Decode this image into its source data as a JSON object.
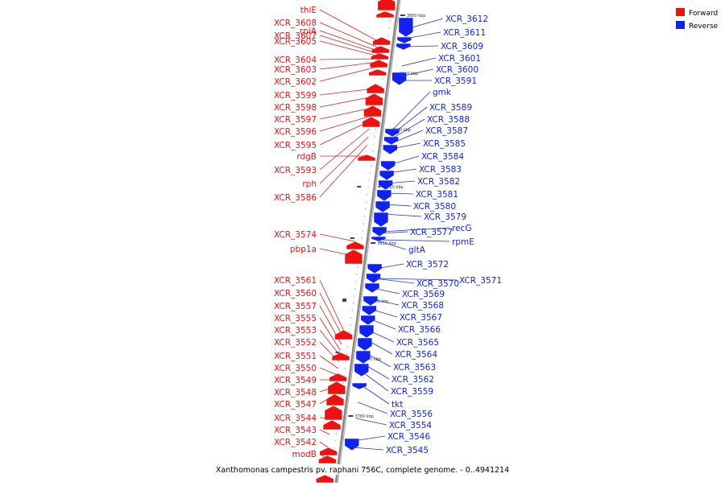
{
  "caption": "Xanthomonas campestris pv. raphani 756C, complete genome. - 0..4941214",
  "legend": [
    {
      "label": "Forward",
      "color": "#ee1111"
    },
    {
      "label": "Reverse",
      "color": "#1122ee"
    }
  ],
  "colors": {
    "forward": "#ee1111",
    "reverse": "#1122ee",
    "axis": "#888888",
    "forward_leader": "#cc2222",
    "reverse_leader": "#2233cc"
  },
  "tick_labels": [
    "3850 kbp",
    "3840 kbp",
    "3830 kbp",
    "3820 kbp",
    "3810 kbp",
    "3800 kbp",
    "3790 kbp",
    "3780 kbp",
    "3770 kbp"
  ],
  "forward_labels": [
    "thiE",
    "XCR_3608",
    "rpiA",
    "XCR_3607",
    "XCR_3605",
    "XCR_3604",
    "XCR_3603",
    "XCR_3602",
    "XCR_3599",
    "XCR_3598",
    "XCR_3597",
    "XCR_3596",
    "XCR_3595",
    "rdgB",
    "XCR_3593",
    "rph",
    "XCR_3586",
    "XCR_3574",
    "pbp1a",
    "XCR_3561",
    "XCR_3560",
    "XCR_3557",
    "XCR_3555",
    "XCR_3553",
    "XCR_3552",
    "XCR_3551",
    "XCR_3550",
    "XCR_3549",
    "XCR_3548",
    "XCR_3547",
    "XCR_3544",
    "XCR_3543",
    "XCR_3542",
    "modB"
  ],
  "reverse_labels": [
    "XCR_3612",
    "XCR_3611",
    "XCR_3609",
    "XCR_3601",
    "XCR_3600",
    "XCR_3591",
    "gmk",
    "XCR_3589",
    "XCR_3588",
    "XCR_3587",
    "XCR_3585",
    "XCR_3584",
    "XCR_3583",
    "XCR_3582",
    "XCR_3581",
    "XCR_3580",
    "XCR_3579",
    "recG",
    "XCR_3577",
    "rpmE",
    "gltA",
    "XCR_3572",
    "XCR_3570",
    "XCR_3571",
    "XCR_3569",
    "XCR_3568",
    "XCR_3567",
    "XCR_3566",
    "XCR_3565",
    "XCR_3564",
    "XCR_3563",
    "XCR_3562",
    "XCR_3559",
    "tkt",
    "XCR_3556",
    "XCR_3554",
    "XCR_3546",
    "XCR_3545"
  ]
}
